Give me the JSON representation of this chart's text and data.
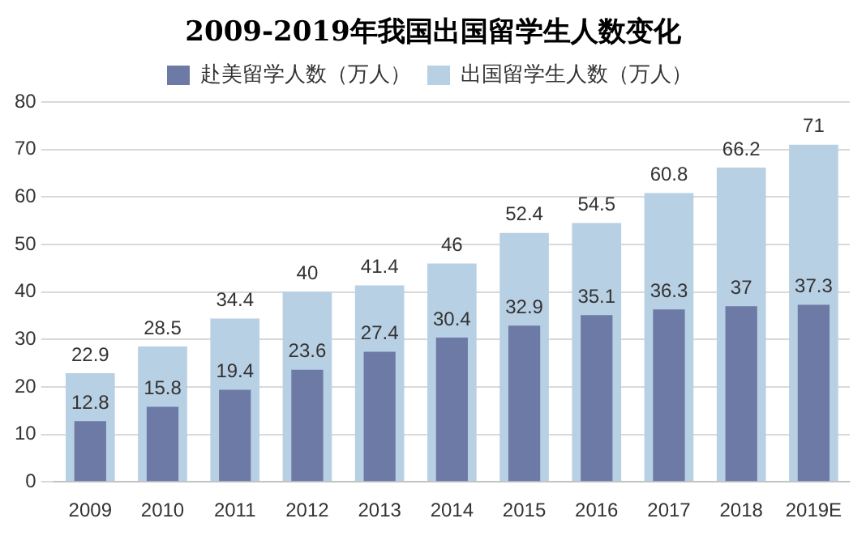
{
  "chart_data": {
    "type": "bar",
    "title": "2009-2019年我国出国留学生人数变化",
    "categories": [
      "2009",
      "2010",
      "2011",
      "2012",
      "2013",
      "2014",
      "2015",
      "2016",
      "2017",
      "2018",
      "2019E"
    ],
    "series": [
      {
        "name": "出国留学生人数（万人）",
        "color": "#b8d0e4",
        "values": [
          22.9,
          28.5,
          34.4,
          40,
          41.4,
          46,
          52.4,
          54.5,
          60.8,
          66.2,
          71
        ]
      },
      {
        "name": "赴美留学人数（万人）",
        "color": "#6e7aa6",
        "values": [
          12.8,
          15.8,
          19.4,
          23.6,
          27.4,
          30.4,
          32.9,
          35.1,
          36.3,
          37,
          37.3
        ]
      }
    ],
    "ylim": [
      0,
      80
    ],
    "yticks": [
      0,
      10,
      20,
      30,
      40,
      50,
      60,
      70,
      80
    ],
    "grid": "y",
    "legend": "top",
    "data_labels": true
  }
}
